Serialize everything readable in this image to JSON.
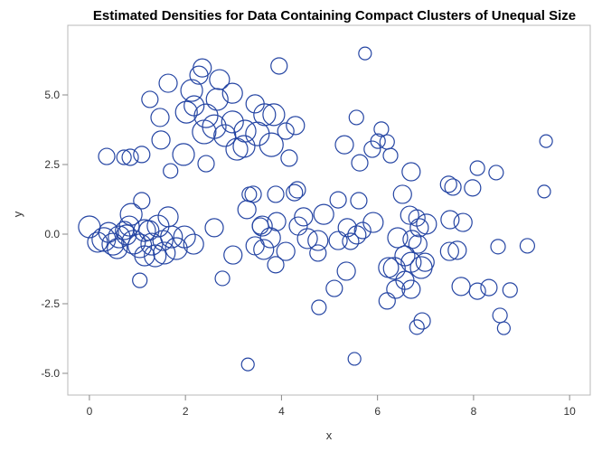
{
  "chart_data": {
    "type": "scatter",
    "title": "Estimated Densities for Data Containing Compact Clusters of Unequal Size",
    "xlabel": "x",
    "ylabel": "y",
    "xlim": [
      -0.45,
      10.43
    ],
    "ylim": [
      -5.78,
      7.5
    ],
    "xticks": [
      0,
      2,
      4,
      6,
      8,
      10
    ],
    "xtick_labels": [
      "0",
      "2",
      "4",
      "6",
      "8",
      "10"
    ],
    "yticks": [
      5,
      2.5,
      0,
      -2.5,
      -5
    ],
    "ytick_labels": [
      "5.0",
      "2.5",
      "0.0",
      "-2.5",
      "-5.0"
    ],
    "grid": false,
    "marker": "open-circle-bubble",
    "colors": {
      "marker": "#2545a3",
      "frame": "#b8b8b8"
    },
    "points_format": [
      "x",
      "y",
      "bubble_size"
    ],
    "points": [
      [
        3.95,
        6.04,
        0.9
      ],
      [
        2.35,
        5.97,
        1.0
      ],
      [
        2.28,
        5.71,
        1.0
      ],
      [
        1.64,
        5.42,
        1.0
      ],
      [
        1.26,
        4.84,
        0.9
      ],
      [
        2.13,
        5.16,
        1.2
      ],
      [
        2.71,
        5.55,
        1.1
      ],
      [
        2.98,
        5.06,
        1.1
      ],
      [
        2.66,
        4.84,
        1.2
      ],
      [
        2.18,
        4.61,
        1.1
      ],
      [
        2.02,
        4.38,
        1.2
      ],
      [
        2.43,
        4.25,
        1.3
      ],
      [
        2.6,
        3.86,
        1.3
      ],
      [
        2.82,
        3.54,
        1.2
      ],
      [
        2.39,
        3.67,
        1.3
      ],
      [
        3.45,
        4.68,
        1.0
      ],
      [
        3.65,
        4.29,
        1.2
      ],
      [
        3.84,
        4.29,
        1.2
      ],
      [
        4.29,
        3.9,
        1.0
      ],
      [
        1.47,
        4.19,
        1.0
      ],
      [
        1.49,
        3.38,
        1.0
      ],
      [
        0.36,
        2.79,
        0.9
      ],
      [
        0.72,
        2.76,
        0.8
      ],
      [
        0.85,
        2.76,
        0.9
      ],
      [
        1.09,
        2.86,
        0.9
      ],
      [
        1.96,
        2.86,
        1.2
      ],
      [
        1.69,
        2.27,
        0.8
      ],
      [
        2.43,
        2.53,
        0.9
      ],
      [
        3.22,
        3.15,
        1.2
      ],
      [
        3.24,
        3.7,
        1.2
      ],
      [
        3.79,
        3.21,
        1.3
      ],
      [
        3.5,
        3.6,
        1.3
      ],
      [
        4.16,
        2.73,
        0.9
      ],
      [
        3.33,
        1.43,
        0.8
      ],
      [
        3.28,
        0.88,
        1.0
      ],
      [
        3.6,
        0.29,
        1.1
      ],
      [
        3.07,
        3.05,
        1.2
      ],
      [
        4.09,
        3.7,
        0.9
      ],
      [
        2.98,
        4.03,
        1.2
      ],
      [
        5.74,
        6.49,
        0.7
      ],
      [
        5.56,
        4.19,
        0.8
      ],
      [
        5.31,
        3.21,
        1.0
      ],
      [
        6.08,
        3.77,
        0.8
      ],
      [
        5.89,
        3.05,
        0.9
      ],
      [
        6.2,
        3.31,
        0.8
      ],
      [
        6.27,
        2.82,
        0.8
      ],
      [
        5.63,
        2.56,
        0.9
      ],
      [
        6.01,
        3.34,
        0.8
      ],
      [
        8.08,
        2.37,
        0.8
      ],
      [
        8.47,
        2.21,
        0.8
      ],
      [
        7.98,
        1.66,
        0.9
      ],
      [
        7.48,
        1.79,
        0.9
      ],
      [
        7.57,
        1.69,
        0.9
      ],
      [
        7.51,
        0.52,
        1.0
      ],
      [
        7.78,
        0.42,
        1.0
      ],
      [
        7.5,
        -0.62,
        1.0
      ],
      [
        7.66,
        -0.58,
        1.0
      ],
      [
        8.51,
        -0.45,
        0.8
      ],
      [
        9.12,
        -0.42,
        0.8
      ],
      [
        9.51,
        3.34,
        0.7
      ],
      [
        9.47,
        1.53,
        0.7
      ],
      [
        7.74,
        -1.88,
        1.0
      ],
      [
        8.08,
        -2.05,
        0.9
      ],
      [
        8.32,
        -1.92,
        0.9
      ],
      [
        8.76,
        -2.01,
        0.8
      ],
      [
        8.55,
        -2.92,
        0.8
      ],
      [
        8.63,
        -3.38,
        0.7
      ],
      [
        7.02,
        0.36,
        1.1
      ],
      [
        6.7,
        2.24,
        1.0
      ],
      [
        6.52,
        1.43,
        1.0
      ],
      [
        6.67,
        0.68,
        1.0
      ],
      [
        6.82,
        0.58,
        0.9
      ],
      [
        6.87,
        0.23,
        1.0
      ],
      [
        6.42,
        -0.13,
        1.1
      ],
      [
        6.72,
        -0.19,
        1.0
      ],
      [
        6.35,
        -1.23,
        1.2
      ],
      [
        6.23,
        -1.2,
        1.1
      ],
      [
        6.38,
        -1.98,
        1.0
      ],
      [
        6.57,
        -1.66,
        1.0
      ],
      [
        6.7,
        -1.01,
        1.1
      ],
      [
        6.91,
        -1.2,
        1.2
      ],
      [
        6.99,
        -1.01,
        1.0
      ],
      [
        6.7,
        -1.98,
        1.0
      ],
      [
        6.93,
        -3.12,
        0.9
      ],
      [
        6.82,
        -3.34,
        0.8
      ],
      [
        6.2,
        -2.4,
        0.9
      ],
      [
        6.84,
        -0.36,
        1.0
      ],
      [
        6.57,
        -0.78,
        1.1
      ],
      [
        3.3,
        -4.68,
        0.7
      ],
      [
        5.52,
        -4.48,
        0.7
      ],
      [
        5.1,
        -1.95,
        0.9
      ],
      [
        5.35,
        -1.33,
        1.0
      ],
      [
        4.76,
        -0.68,
        0.9
      ],
      [
        4.78,
        -2.63,
        0.8
      ],
      [
        5.57,
        -0.03,
        1.0
      ],
      [
        5.61,
        1.2,
        0.9
      ],
      [
        5.18,
        1.23,
        0.9
      ],
      [
        5.69,
        0.13,
        0.9
      ],
      [
        5.91,
        0.42,
        1.1
      ],
      [
        5.44,
        -0.26,
        0.9
      ],
      [
        5.18,
        -0.23,
        1.0
      ],
      [
        5.37,
        0.23,
        1.0
      ],
      [
        4.76,
        -0.23,
        1.1
      ],
      [
        4.54,
        -0.16,
        1.1
      ],
      [
        4.35,
        0.29,
        1.0
      ],
      [
        4.09,
        -0.62,
        1.0
      ],
      [
        3.88,
        -1.1,
        0.9
      ],
      [
        3.77,
        -0.13,
        1.1
      ],
      [
        3.9,
        0.45,
        1.0
      ],
      [
        3.63,
        -0.55,
        1.1
      ],
      [
        3.45,
        -0.42,
        1.0
      ],
      [
        4.46,
        0.62,
        1.0
      ],
      [
        4.88,
        0.71,
        1.1
      ],
      [
        4.33,
        1.59,
        0.9
      ],
      [
        4.27,
        1.49,
        0.9
      ],
      [
        3.88,
        1.43,
        0.9
      ],
      [
        3.41,
        1.43,
        0.9
      ],
      [
        3.56,
        0.29,
        0.9
      ],
      [
        0.0,
        0.26,
        1.2
      ],
      [
        0.17,
        -0.29,
        1.1
      ],
      [
        0.4,
        0.06,
        1.1
      ],
      [
        0.58,
        -0.52,
        1.1
      ],
      [
        0.77,
        -0.03,
        1.1
      ],
      [
        0.92,
        -0.29,
        1.3
      ],
      [
        1.15,
        0.13,
        1.2
      ],
      [
        1.15,
        -0.78,
        1.1
      ],
      [
        1.3,
        -0.36,
        1.2
      ],
      [
        1.53,
        -0.23,
        1.1
      ],
      [
        1.71,
        -0.1,
        1.2
      ],
      [
        1.98,
        -0.1,
        1.2
      ],
      [
        2.17,
        -0.36,
        1.1
      ],
      [
        1.56,
        -0.68,
        1.2
      ],
      [
        1.05,
        -0.42,
        1.3
      ],
      [
        0.83,
        0.29,
        1.1
      ],
      [
        0.49,
        -0.36,
        1.2
      ],
      [
        0.3,
        -0.19,
        1.3
      ],
      [
        0.62,
        -0.1,
        1.2
      ],
      [
        1.09,
        1.2,
        0.9
      ],
      [
        0.87,
        0.71,
        1.2
      ],
      [
        1.64,
        0.62,
        1.1
      ],
      [
        2.6,
        0.23,
        1.0
      ],
      [
        1.05,
        -1.66,
        0.8
      ],
      [
        1.37,
        -0.78,
        1.2
      ],
      [
        2.99,
        -0.75,
        1.0
      ],
      [
        2.77,
        -1.59,
        0.8
      ],
      [
        1.43,
        0.29,
        1.2
      ],
      [
        0.73,
        0.13,
        1.0
      ],
      [
        1.81,
        -0.52,
        1.2
      ],
      [
        1.24,
        0.13,
        1.1
      ]
    ]
  }
}
